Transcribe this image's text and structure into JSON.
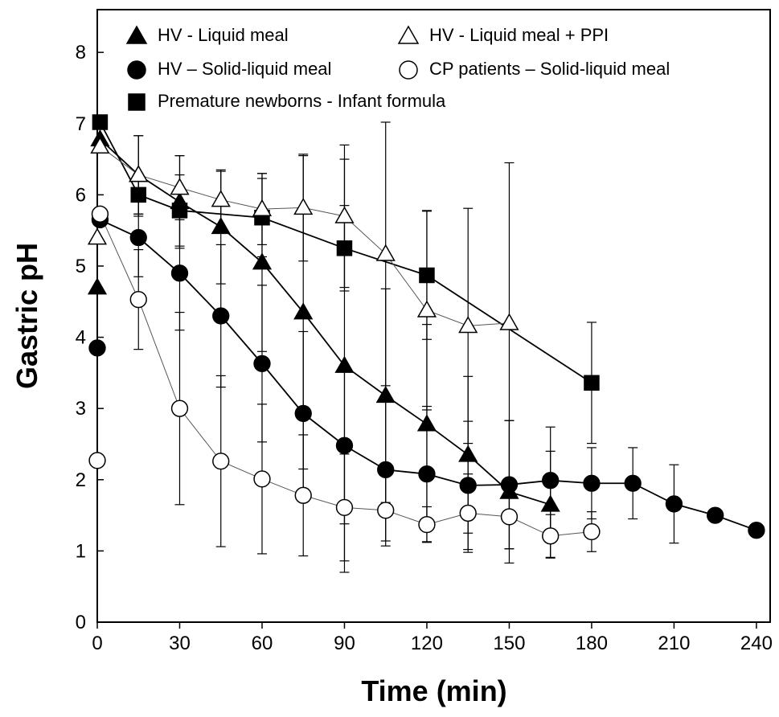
{
  "chart_data": {
    "type": "line",
    "x_label": "Time (min)",
    "y_label": "Gastric pH",
    "xlim": [
      0,
      245
    ],
    "ylim": [
      0,
      8.6
    ],
    "xticks": [
      0,
      30,
      60,
      90,
      120,
      150,
      180,
      210,
      240
    ],
    "yticks": [
      0,
      1,
      2,
      3,
      4,
      5,
      6,
      7,
      8
    ],
    "series": [
      {
        "name": "HV - Liquid meal",
        "marker": "triangle",
        "filled": true,
        "color": "#000000",
        "x": [
          0,
          1,
          15,
          30,
          45,
          60,
          75,
          90,
          105,
          120,
          135,
          150,
          165
        ],
        "values": [
          4.7,
          6.78,
          6.28,
          5.9,
          5.55,
          5.05,
          4.35,
          3.6,
          3.18,
          2.78,
          2.35,
          1.83,
          1.65
        ],
        "errors": [
          null,
          null,
          0.55,
          0.65,
          0.8,
          1.25,
          2.2,
          2.9,
          1.5,
          1.4,
          1.1,
          1.0,
          0.75
        ]
      },
      {
        "name": "HV – Solid-liquid meal",
        "marker": "circle",
        "filled": true,
        "color": "#000000",
        "x": [
          0,
          1,
          15,
          30,
          45,
          60,
          75,
          90,
          105,
          120,
          135,
          150,
          165,
          180,
          195,
          210,
          225,
          240
        ],
        "values": [
          3.85,
          5.65,
          5.4,
          4.9,
          4.3,
          3.63,
          2.93,
          2.48,
          2.14,
          2.08,
          1.92,
          1.93,
          1.99,
          1.95,
          1.95,
          1.66,
          1.5,
          1.29
        ],
        "errors": [
          null,
          null,
          0.55,
          0.8,
          1.0,
          1.1,
          1.15,
          1.1,
          1.0,
          0.95,
          0.9,
          0.9,
          0.75,
          0.5,
          0.5,
          0.55,
          null,
          null
        ]
      },
      {
        "name": "Premature newborns - Infant formula",
        "marker": "square",
        "filled": true,
        "color": "#000000",
        "x": [
          1,
          15,
          30,
          60,
          90,
          120,
          180
        ],
        "values": [
          7.02,
          6.0,
          5.78,
          5.68,
          5.25,
          4.87,
          3.36
        ],
        "errors": [
          null,
          0.3,
          0.5,
          0.55,
          0.6,
          0.9,
          0.85
        ]
      },
      {
        "name": "HV - Liquid meal + PPI",
        "marker": "triangle",
        "filled": false,
        "color": "#000000",
        "x": [
          0,
          1,
          15,
          30,
          45,
          60,
          75,
          90,
          105,
          120,
          135,
          150
        ],
        "values": [
          5.4,
          6.68,
          6.28,
          6.1,
          5.93,
          5.8,
          5.82,
          5.7,
          5.17,
          4.38,
          4.16,
          4.2
        ],
        "errors": [
          null,
          null,
          0.55,
          0.45,
          0.4,
          0.5,
          0.75,
          1.0,
          1.85,
          1.4,
          1.65,
          2.25
        ]
      },
      {
        "name": "CP patients – Solid-liquid meal",
        "marker": "circle",
        "filled": false,
        "color": "#000000",
        "x": [
          0,
          1,
          15,
          30,
          45,
          60,
          75,
          90,
          105,
          120,
          135,
          150,
          165,
          180
        ],
        "values": [
          2.27,
          5.73,
          4.53,
          3.0,
          2.26,
          2.01,
          1.78,
          1.61,
          1.57,
          1.37,
          1.53,
          1.48,
          1.21,
          1.27
        ],
        "errors": [
          null,
          null,
          0.7,
          1.35,
          1.2,
          1.05,
          0.85,
          0.75,
          0.5,
          0.25,
          0.55,
          0.45,
          0.3,
          0.28
        ]
      }
    ]
  }
}
